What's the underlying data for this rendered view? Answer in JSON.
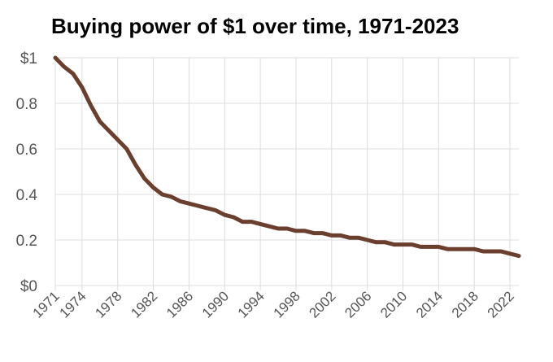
{
  "chart_data": {
    "type": "line",
    "title": "Buying power of $1 over time, 1971-2023",
    "xlabel": "",
    "ylabel": "",
    "xlim": [
      1971,
      2023
    ],
    "ylim": [
      0,
      1
    ],
    "grid": true,
    "line_color": "#6b3f2e",
    "y_ticks": [
      {
        "value": 1,
        "label": "$1"
      },
      {
        "value": 0.8,
        "label": "0.8"
      },
      {
        "value": 0.6,
        "label": "0.6"
      },
      {
        "value": 0.4,
        "label": "0.4"
      },
      {
        "value": 0.2,
        "label": "0.2"
      },
      {
        "value": 0,
        "label": "$0"
      }
    ],
    "x_ticks": [
      1971,
      1974,
      1978,
      1982,
      1986,
      1990,
      1994,
      1998,
      2002,
      2006,
      2010,
      2014,
      2018,
      2022
    ],
    "series": [
      {
        "x": [
          1971,
          1972,
          1973,
          1974,
          1975,
          1976,
          1977,
          1978,
          1979,
          1980,
          1981,
          1982,
          1983,
          1984,
          1985,
          1986,
          1987,
          1988,
          1989,
          1990,
          1991,
          1992,
          1993,
          1994,
          1995,
          1996,
          1997,
          1998,
          1999,
          2000,
          2001,
          2002,
          2003,
          2004,
          2005,
          2006,
          2007,
          2008,
          2009,
          2010,
          2011,
          2012,
          2013,
          2014,
          2015,
          2016,
          2017,
          2018,
          2019,
          2020,
          2021,
          2022,
          2023
        ],
        "values": [
          1.0,
          0.96,
          0.93,
          0.87,
          0.79,
          0.72,
          0.68,
          0.64,
          0.6,
          0.53,
          0.47,
          0.43,
          0.4,
          0.39,
          0.37,
          0.36,
          0.35,
          0.34,
          0.33,
          0.31,
          0.3,
          0.28,
          0.28,
          0.27,
          0.26,
          0.25,
          0.25,
          0.24,
          0.24,
          0.23,
          0.23,
          0.22,
          0.22,
          0.21,
          0.21,
          0.2,
          0.19,
          0.19,
          0.18,
          0.18,
          0.18,
          0.17,
          0.17,
          0.17,
          0.16,
          0.16,
          0.16,
          0.16,
          0.15,
          0.15,
          0.15,
          0.14,
          0.13
        ]
      }
    ]
  }
}
